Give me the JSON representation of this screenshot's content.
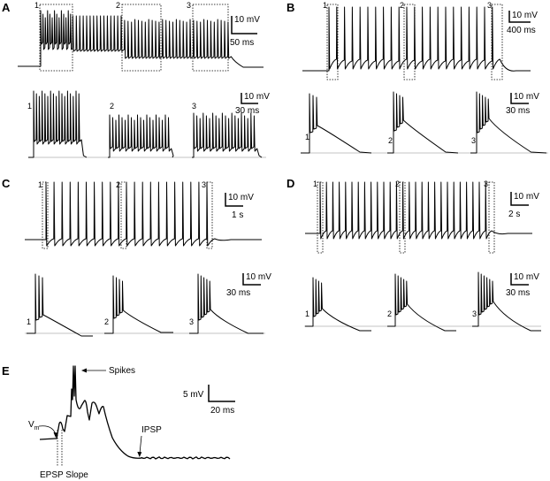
{
  "panels": {
    "A": {
      "label": "A",
      "top_scale": {
        "v": "10 mV",
        "t": "50 ms"
      },
      "bottom_scale": {
        "v": "10 mV",
        "t": "30 ms"
      },
      "segments": [
        "1",
        "2",
        "3"
      ]
    },
    "B": {
      "label": "B",
      "top_scale": {
        "v": "10 mV",
        "t": "400 ms"
      },
      "bottom_scale": {
        "v": "10 mV",
        "t": "30 ms"
      },
      "segments": [
        "1",
        "2",
        "3"
      ]
    },
    "C": {
      "label": "C",
      "top_scale": {
        "v": "10 mV",
        "t": "1 s"
      },
      "bottom_scale": {
        "v": "10 mV",
        "t": "30 ms"
      },
      "segments": [
        "1",
        "2",
        "3"
      ]
    },
    "D": {
      "label": "D",
      "top_scale": {
        "v": "10 mV",
        "t": "2 s"
      },
      "bottom_scale": {
        "v": "10 mV",
        "t": "30 ms"
      },
      "segments": [
        "1",
        "2",
        "3"
      ]
    },
    "E": {
      "label": "E",
      "scale": {
        "v": "5 mV",
        "t": "20 ms"
      },
      "annotations": {
        "vm": "V",
        "vm_sub": "m",
        "spikes": "Spikes",
        "ipsp": "IPSP",
        "epsp": "EPSP Slope"
      }
    }
  }
}
